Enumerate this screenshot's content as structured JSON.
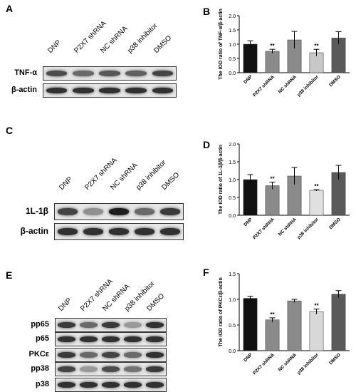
{
  "panel_letters": {
    "A": "A",
    "B": "B",
    "C": "C",
    "D": "D",
    "E": "E",
    "F": "F"
  },
  "lanes": [
    "DNP",
    "P2X7 shRNA",
    "NC shRNA",
    "p38 inhibitor",
    "DMSO"
  ],
  "blots": {
    "A": {
      "rows": [
        {
          "label": "TNF-α",
          "intensity": [
            0.7,
            0.55,
            0.65,
            0.6,
            0.75
          ]
        },
        {
          "label": "β-actin",
          "intensity": [
            0.85,
            0.85,
            0.85,
            0.85,
            0.85
          ]
        }
      ]
    },
    "C": {
      "rows": [
        {
          "label": "1L-1β",
          "intensity": [
            0.75,
            0.35,
            0.95,
            0.55,
            0.8
          ]
        },
        {
          "label": "β-actin",
          "intensity": [
            0.85,
            0.85,
            0.85,
            0.85,
            0.85
          ]
        }
      ]
    },
    "E": {
      "rows": [
        {
          "label": "pp65",
          "intensity": [
            0.8,
            0.55,
            0.8,
            0.3,
            0.85
          ]
        },
        {
          "label": "p65",
          "intensity": [
            0.85,
            0.85,
            0.85,
            0.85,
            0.85
          ]
        },
        {
          "label": "PKCε",
          "intensity": [
            0.8,
            0.55,
            0.75,
            0.55,
            0.85
          ]
        },
        {
          "label": "pp38",
          "intensity": [
            0.75,
            0.3,
            0.7,
            0.5,
            0.8
          ]
        },
        {
          "label": "p38",
          "intensity": [
            0.85,
            0.85,
            0.85,
            0.85,
            0.85
          ]
        },
        {
          "label": "β-actin",
          "intensity": [
            0.85,
            0.85,
            0.85,
            0.85,
            0.85
          ]
        }
      ]
    }
  },
  "chart_data": [
    {
      "id": "B",
      "type": "bar",
      "ylabel": "The IOD ratio of TNF-α/β-actin",
      "categories": [
        "DNP",
        "P2X7 shRNA",
        "NC shRNA",
        "p38 inhibitor",
        "DMSO"
      ],
      "values": [
        1.0,
        0.75,
        1.15,
        0.7,
        1.22
      ],
      "errors": [
        0.12,
        0.07,
        0.3,
        0.12,
        0.22
      ],
      "significance": [
        "",
        "**",
        "",
        "**",
        ""
      ],
      "ylim": [
        0,
        2.0
      ],
      "yticks": [
        "0.0",
        "0.5",
        "1.0",
        "1.5",
        "2.0"
      ],
      "colors": [
        "#111111",
        "#8a8a8a",
        "#8a8a8a",
        "#c8c8c8",
        "#5a5a5a"
      ]
    },
    {
      "id": "D",
      "type": "bar",
      "ylabel": "The IOD ratio of 1L-1β/β-actin",
      "categories": [
        "DNP",
        "P2X7 shRNA",
        "NC shRNA",
        "p38 inhibitor",
        "DMSO"
      ],
      "values": [
        1.0,
        0.83,
        1.1,
        0.7,
        1.2
      ],
      "errors": [
        0.14,
        0.1,
        0.24,
        0.02,
        0.2
      ],
      "significance": [
        "",
        "**",
        "",
        "**",
        ""
      ],
      "ylim": [
        0,
        2.0
      ],
      "yticks": [
        "0.0",
        "0.5",
        "1.0",
        "1.5",
        "2.0"
      ],
      "colors": [
        "#111111",
        "#8a8a8a",
        "#8a8a8a",
        "#e0e0e0",
        "#5a5a5a"
      ]
    },
    {
      "id": "F",
      "type": "bar",
      "ylabel": "The IOD ratio of PKCε/β-actin",
      "categories": [
        "DNP",
        "P2X7 shRNA",
        "NC shRNA",
        "p38 inhibitor",
        "DMSO"
      ],
      "values": [
        1.02,
        0.6,
        0.97,
        0.76,
        1.1
      ],
      "errors": [
        0.04,
        0.04,
        0.03,
        0.05,
        0.07
      ],
      "significance": [
        "",
        "**",
        "",
        "**",
        ""
      ],
      "ylim": [
        0,
        1.5
      ],
      "yticks": [
        "0.0",
        "0.5",
        "1.0",
        "1.5"
      ],
      "colors": [
        "#111111",
        "#8a8a8a",
        "#8a8a8a",
        "#d8d8d8",
        "#5a5a5a"
      ]
    }
  ]
}
